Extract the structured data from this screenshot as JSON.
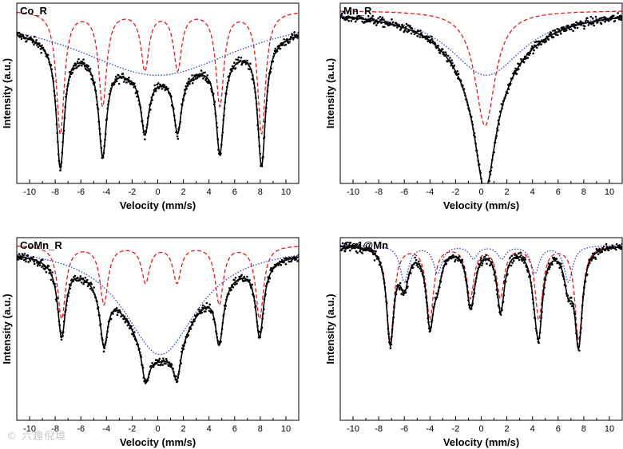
{
  "figure": {
    "x_ticks": [
      -10,
      -8,
      -6,
      -4,
      -2,
      0,
      2,
      4,
      6,
      8,
      10
    ],
    "xlim": [
      -11.0,
      11.0
    ],
    "xlabel": "Velocity (mm/s)",
    "ylabel": "Intensity (a.u.)",
    "colors": {
      "data": "#000000",
      "fit": "#000000",
      "red": "#e41a1c",
      "blue": "#2f3fe0"
    }
  },
  "watermark": "© 六趣倪境",
  "chart_data": [
    {
      "type": "line",
      "title": "Co_R",
      "xlabel": "Velocity (mm/s)",
      "ylabel": "Intensity (a.u.)",
      "xlim": [
        -11,
        11
      ],
      "ylim": [
        0.52,
        1.02
      ],
      "series": [
        {
          "name": "sextet",
          "style": "dashed",
          "color": "red",
          "components": [
            {
              "kind": "sextet",
              "lines": [
                -7.6,
                -4.3,
                -1.0,
                1.55,
                4.85,
                8.1
              ],
              "width": 0.75,
              "depths": [
                0.34,
                0.26,
                0.16,
                0.16,
                0.26,
                0.34
              ]
            }
          ]
        },
        {
          "name": "broad doublet",
          "style": "dotted",
          "color": "blue",
          "components": [
            {
              "kind": "broad",
              "center": 0.0,
              "width": 16.0,
              "depth": 0.18
            }
          ]
        },
        {
          "name": "total fit",
          "style": "solid",
          "color": "data"
        },
        {
          "name": "experimental",
          "style": "points",
          "color": "data"
        }
      ]
    },
    {
      "type": "line",
      "title": "Mn_R",
      "xlabel": "Velocity (mm/s)",
      "ylabel": "Intensity (a.u.)",
      "xlim": [
        -11,
        11
      ],
      "ylim": [
        0.52,
        1.02
      ],
      "series": [
        {
          "name": "singlet",
          "style": "dashed",
          "color": "red",
          "components": [
            {
              "kind": "singlet",
              "center": 0.3,
              "width": 1.9,
              "depth": 0.32
            }
          ]
        },
        {
          "name": "broad doublet",
          "style": "dotted",
          "color": "blue",
          "components": [
            {
              "kind": "broad",
              "center": 0.4,
              "width": 7.0,
              "depth": 0.18
            }
          ]
        },
        {
          "name": "total fit",
          "style": "solid",
          "color": "data"
        },
        {
          "name": "experimental",
          "style": "points",
          "color": "data"
        }
      ]
    },
    {
      "type": "line",
      "title": "CoMn_R",
      "xlabel": "Velocity (mm/s)",
      "ylabel": "Intensity (a.u.)",
      "xlim": [
        -11,
        11
      ],
      "ylim": [
        0.52,
        1.02
      ],
      "series": [
        {
          "name": "sextet",
          "style": "dashed",
          "color": "red",
          "components": [
            {
              "kind": "sextet",
              "lines": [
                -7.5,
                -4.2,
                -0.95,
                1.5,
                4.8,
                7.95
              ],
              "width": 0.75,
              "depths": [
                0.2,
                0.16,
                0.1,
                0.1,
                0.16,
                0.2
              ]
            }
          ]
        },
        {
          "name": "broad doublet",
          "style": "dotted",
          "color": "blue",
          "components": [
            {
              "kind": "broad",
              "center": 0.2,
              "width": 7.0,
              "depth": 0.3
            }
          ]
        },
        {
          "name": "total fit",
          "style": "solid",
          "color": "data"
        },
        {
          "name": "experimental",
          "style": "points",
          "color": "data"
        }
      ]
    },
    {
      "type": "line",
      "title": "Co1@Mn",
      "xlabel": "Velocity (mm/s)",
      "ylabel": "Intensity (a.u.)",
      "xlim": [
        -11,
        11
      ],
      "ylim": [
        0.52,
        1.02
      ],
      "series": [
        {
          "name": "sextet 1",
          "style": "dashed",
          "color": "red",
          "components": [
            {
              "kind": "sextet",
              "lines": [
                -7.1,
                -4.0,
                -0.85,
                1.5,
                4.5,
                7.6
              ],
              "width": 0.7,
              "depths": [
                0.26,
                0.2,
                0.14,
                0.14,
                0.2,
                0.26
              ]
            }
          ]
        },
        {
          "name": "sextet 2",
          "style": "dotted",
          "color": "blue",
          "components": [
            {
              "kind": "sextet",
              "lines": [
                -6.0,
                -3.4,
                -0.6,
                1.6,
                4.2,
                6.8
              ],
              "width": 0.8,
              "depths": [
                0.1,
                0.075,
                0.035,
                0.035,
                0.075,
                0.1
              ]
            }
          ]
        },
        {
          "name": "total fit",
          "style": "solid",
          "color": "data"
        },
        {
          "name": "experimental",
          "style": "points",
          "color": "data"
        }
      ]
    }
  ]
}
